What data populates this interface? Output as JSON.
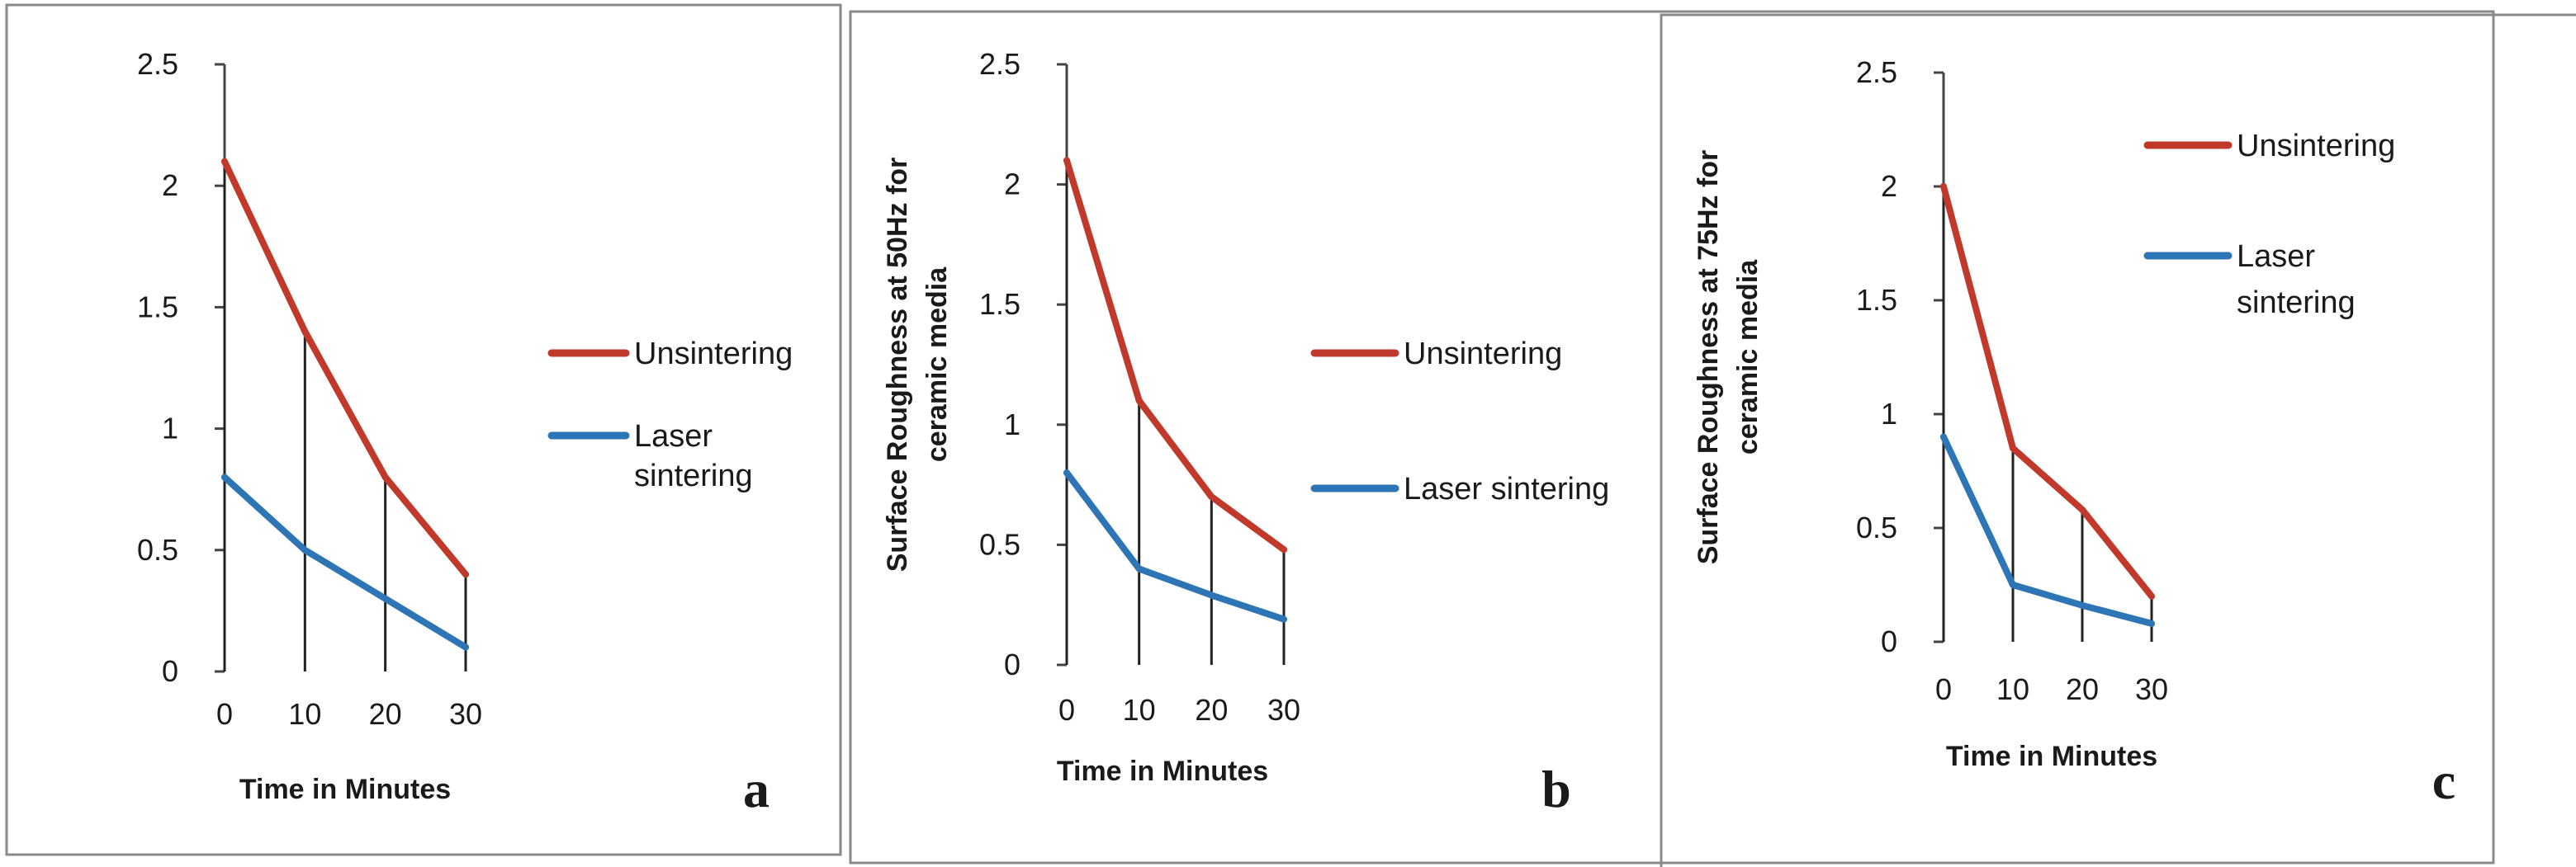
{
  "chart_data": [
    {
      "type": "line",
      "panel_label": "a",
      "categories": [
        "0",
        "10",
        "20",
        "30"
      ],
      "x": [
        0,
        10,
        20,
        30
      ],
      "series": [
        {
          "name": "Unsintering",
          "color": "#c0392b",
          "values": [
            2.1,
            1.4,
            0.8,
            0.4
          ]
        },
        {
          "name": "Laser sintering",
          "color": "#2e75b6",
          "values": [
            0.8,
            0.5,
            0.3,
            0.1
          ]
        }
      ],
      "legend_lines": [
        [
          "Unsintering"
        ],
        [
          "Laser",
          "sintering"
        ]
      ],
      "xlabel": "Time in Minutes",
      "ylabel_lines": [],
      "ylim": [
        0,
        2.5
      ],
      "yticks": [
        "0",
        "0.5",
        "1",
        "1.5",
        "2",
        "2.5"
      ],
      "drop_lines": true,
      "grid": false,
      "legend_position": "right"
    },
    {
      "type": "line",
      "panel_label": "b",
      "categories": [
        "0",
        "10",
        "20",
        "30"
      ],
      "x": [
        0,
        10,
        20,
        30
      ],
      "series": [
        {
          "name": "Unsintering",
          "color": "#c0392b",
          "values": [
            2.1,
            1.1,
            0.7,
            0.48
          ]
        },
        {
          "name": "Laser sintering",
          "color": "#2e75b6",
          "values": [
            0.8,
            0.4,
            0.29,
            0.19
          ]
        }
      ],
      "legend_lines": [
        [
          "Unsintering"
        ],
        [
          "Laser sintering"
        ]
      ],
      "xlabel": "Time in Minutes",
      "ylabel_lines": [
        "Surface Roughness at 50Hz for",
        "ceramic media"
      ],
      "ylim": [
        0,
        2.5
      ],
      "yticks": [
        "0",
        "0.5",
        "1",
        "1.5",
        "2",
        "2.5"
      ],
      "drop_lines": true,
      "grid": false,
      "legend_position": "right"
    },
    {
      "type": "line",
      "panel_label": "c",
      "categories": [
        "0",
        "10",
        "20",
        "30"
      ],
      "x": [
        0,
        10,
        20,
        30
      ],
      "series": [
        {
          "name": "Unsintering",
          "color": "#c0392b",
          "values": [
            2.0,
            0.85,
            0.58,
            0.2
          ]
        },
        {
          "name": "Laser sintering",
          "color": "#2e75b6",
          "values": [
            0.9,
            0.25,
            0.16,
            0.08
          ]
        }
      ],
      "legend_lines": [
        [
          "Unsintering"
        ],
        [
          "Laser",
          "sintering"
        ]
      ],
      "xlabel": "Time in Minutes",
      "ylabel_lines": [
        "Surface Roughness at 75Hz for",
        "ceramic media"
      ],
      "ylim": [
        0,
        2.5
      ],
      "yticks": [
        "0",
        "0.5",
        "1",
        "1.5",
        "2",
        "2.5"
      ],
      "drop_lines": true,
      "grid": false,
      "legend_position": "top-right"
    }
  ]
}
